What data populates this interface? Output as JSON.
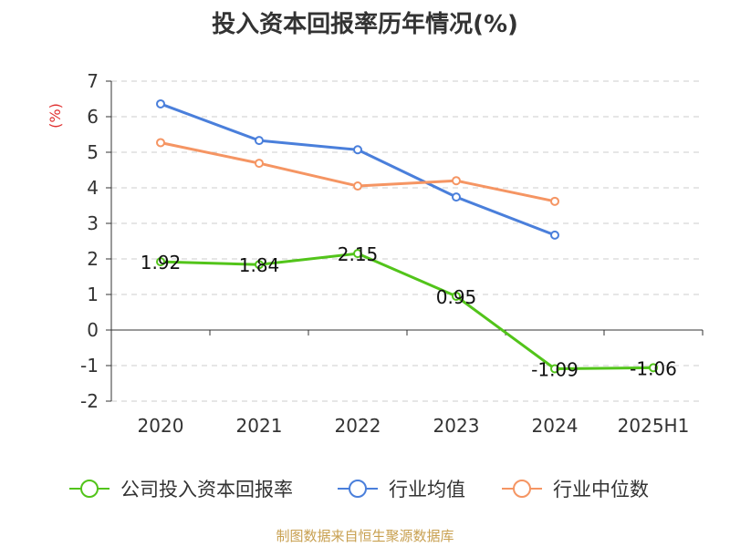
{
  "chart_data": {
    "type": "line",
    "title": "投入资本回报率历年情况(%)",
    "ylabel": "(%)",
    "xlabel": "",
    "categories": [
      "2020",
      "2021",
      "2022",
      "2023",
      "2024",
      "2025H1"
    ],
    "ylim": [
      -2,
      7
    ],
    "yticks": [
      "7",
      "6",
      "5",
      "4",
      "3",
      "2",
      "1",
      "0",
      "-1",
      "-2"
    ],
    "grid": true,
    "legend_position": "bottom",
    "series": [
      {
        "name": "公司投入资本回报率",
        "color": "#52c41a",
        "values": [
          1.92,
          1.84,
          2.15,
          0.95,
          -1.09,
          -1.06
        ],
        "labels": [
          "1.92",
          "1.84",
          "2.15",
          "0.95",
          "-1.09",
          "-1.06"
        ]
      },
      {
        "name": "行业均值",
        "color": "#4a7fdb",
        "values": [
          6.36,
          5.33,
          5.07,
          3.74,
          2.67,
          null
        ]
      },
      {
        "name": "行业中位数",
        "color": "#f59563",
        "values": [
          5.27,
          4.69,
          4.05,
          4.2,
          3.62,
          null
        ]
      }
    ]
  },
  "source": "制图数据来自恒生聚源数据库",
  "colors": {
    "axis": "#333333",
    "grid": "#cccccc",
    "ylabel": "#e03030",
    "source": "#c8a050"
  }
}
